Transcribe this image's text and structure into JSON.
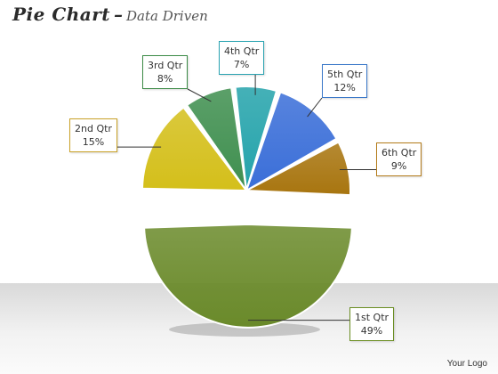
{
  "title": {
    "main": "Pie Chart",
    "separator": "–",
    "subtitle": "Data Driven"
  },
  "logo_text": "Your Logo",
  "chart_data": {
    "type": "pie",
    "exploded": true,
    "slices": [
      {
        "label": "1st Qtr",
        "value": 49,
        "value_label": "49%",
        "color": "#6a8a2a",
        "border": "#6b8e23"
      },
      {
        "label": "2nd Qtr",
        "value": 15,
        "value_label": "15%",
        "color": "#d4bf1a",
        "border": "#c9a227"
      },
      {
        "label": "3rd Qtr",
        "value": 8,
        "value_label": "8%",
        "color": "#3f8f4f",
        "border": "#3c8b46"
      },
      {
        "label": "4th Qtr",
        "value": 7,
        "value_label": "7%",
        "color": "#24a3ab",
        "border": "#2aa3b1"
      },
      {
        "label": "5th Qtr",
        "value": 12,
        "value_label": "12%",
        "color": "#3a6ed8",
        "border": "#3a78c9"
      },
      {
        "label": "6th Qtr",
        "value": 9,
        "value_label": "9%",
        "color": "#a8750f",
        "border": "#b47c1b"
      }
    ]
  }
}
